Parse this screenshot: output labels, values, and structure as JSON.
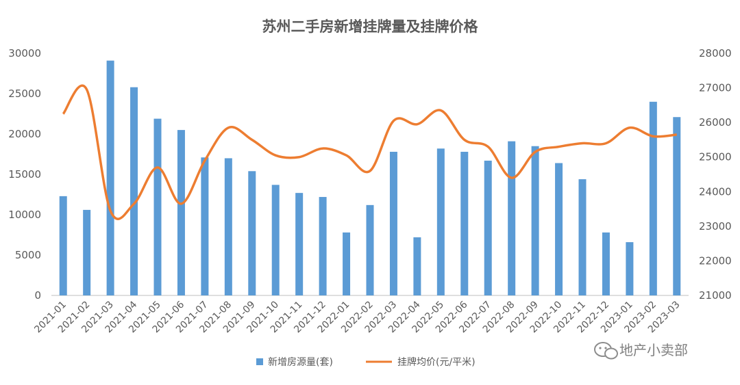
{
  "chart_data": {
    "type": "bar",
    "title": "苏州二手房新增挂牌量及挂牌价格",
    "categories": [
      "2021-01",
      "2021-02",
      "2021-03",
      "2021-04",
      "2021-05",
      "2021-06",
      "2021-07",
      "2021-08",
      "2021-09",
      "2021-10",
      "2021-11",
      "2021-12",
      "2022-01",
      "2022-02",
      "2022-03",
      "2022-04",
      "2022-05",
      "2022-06",
      "2022-07",
      "2022-08",
      "2022-09",
      "2022-10",
      "2022-11",
      "2022-12",
      "2023-01",
      "2023-02",
      "2023-03"
    ],
    "series": [
      {
        "name": "新增房源量(套)",
        "type": "bar",
        "axis": "left",
        "color": "#5b9bd5",
        "values": [
          12300,
          10600,
          29100,
          25800,
          21900,
          20500,
          17100,
          17000,
          15400,
          13700,
          12700,
          12200,
          7800,
          11200,
          17800,
          7200,
          18200,
          17800,
          16700,
          19100,
          18500,
          16400,
          14400,
          7800,
          6600,
          24000,
          22100
        ]
      },
      {
        "name": "挂牌均价(元/平米)",
        "type": "line",
        "axis": "right",
        "color": "#ed7d31",
        "values": [
          26250,
          26950,
          23450,
          23650,
          24700,
          23650,
          24900,
          25850,
          25500,
          25050,
          25000,
          25250,
          25050,
          24600,
          26050,
          25950,
          26350,
          25500,
          25300,
          24400,
          25150,
          25300,
          25400,
          25400,
          25850,
          25600,
          25650
        ]
      }
    ],
    "y_left": {
      "min": 0,
      "max": 30000,
      "ticks": [
        0,
        5000,
        10000,
        15000,
        20000,
        25000,
        30000
      ]
    },
    "y_right": {
      "min": 21000,
      "max": 28000,
      "ticks": [
        21000,
        22000,
        23000,
        24000,
        25000,
        26000,
        27000,
        28000
      ]
    },
    "grid": false,
    "legend": "bottom",
    "watermark": "地产小卖部"
  }
}
